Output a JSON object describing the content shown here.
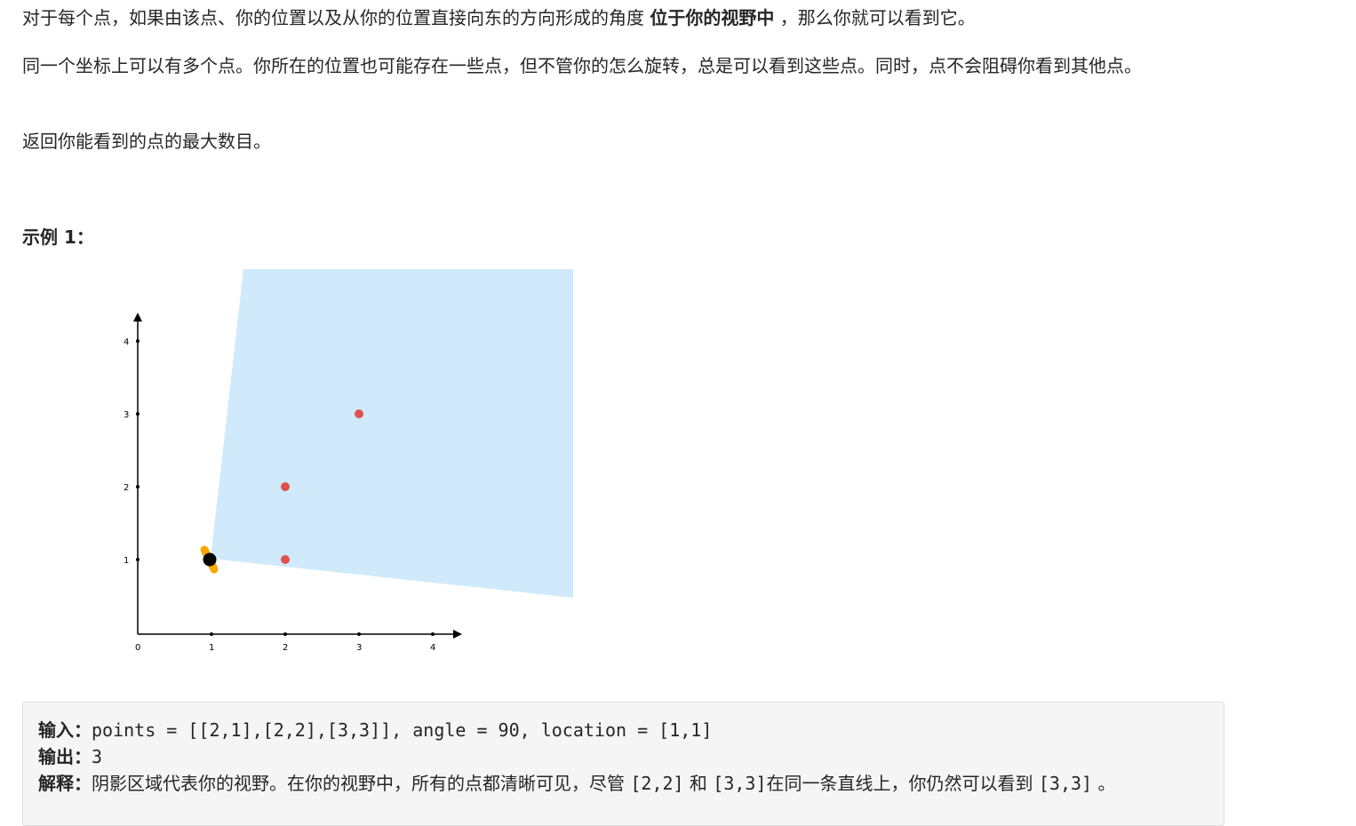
{
  "description": {
    "p1_before": "对于每个点，如果由该点、你的位置以及从你的位置直接向东的方向形成的角度 ",
    "p1_bold": "位于你的视野中",
    "p1_after": " ，那么你就可以看到它。",
    "p2": "同一个坐标上可以有多个点。你所在的位置也可能存在一些点，但不管你的怎么旋转，总是可以看到这些点。同时，点不会阻碍你看到其他点。",
    "p3": "返回你能看到的点的最大数目。"
  },
  "example": {
    "heading": "示例 1：",
    "input_label": "输入：",
    "input_value": "points = [[2,1],[2,2],[3,3]], angle = 90, location = [1,1]",
    "output_label": "输出：",
    "output_value": "3",
    "explain_label": "解释：",
    "explain_part1": "阴影区域代表你的视野。在你的视野中，所有的点都清晰可见，尽管 ",
    "explain_code1": "[2,2]",
    "explain_part2": " 和 ",
    "explain_code2": "[3,3]",
    "explain_part3": "在同一条直线上，你仍然可以看到 ",
    "explain_code3": "[3,3]",
    "explain_part4": " 。"
  },
  "colors": {
    "shade": "#d0eafb",
    "point": "#e0504f",
    "location": "#000000",
    "location_halo": "#f7a600"
  },
  "chart_data": {
    "type": "scatter",
    "x_ticks": [
      "0",
      "1",
      "2",
      "3",
      "4"
    ],
    "y_ticks": [
      "1",
      "2",
      "3",
      "4"
    ],
    "points": [
      [
        2,
        1
      ],
      [
        2,
        2
      ],
      [
        3,
        3
      ]
    ],
    "location": [
      1,
      1
    ],
    "angle": 90
  }
}
